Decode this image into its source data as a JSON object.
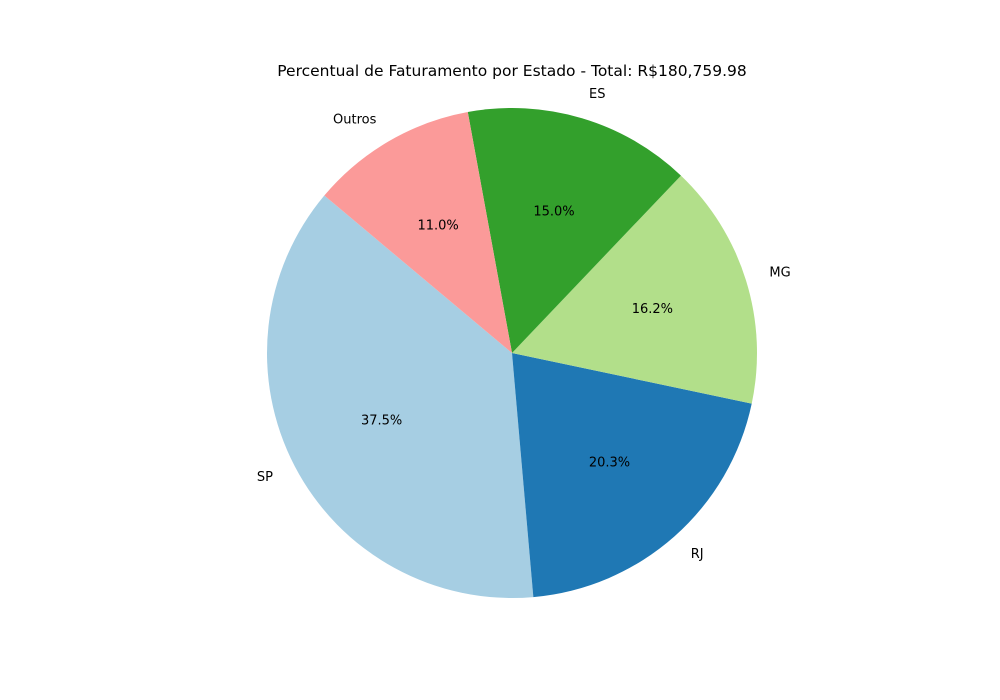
{
  "chart_data": {
    "type": "pie",
    "title": "Percentual de Faturamento por Estado - Total: R$180,759.98",
    "start_angle": 140,
    "direction": "counterclockwise",
    "legend": "none",
    "slices": [
      {
        "label": "SP",
        "value": 37.5,
        "pct_label": "37.5%",
        "color": "#a6cee3"
      },
      {
        "label": "RJ",
        "value": 20.3,
        "pct_label": "20.3%",
        "color": "#1f78b4"
      },
      {
        "label": "MG",
        "value": 16.2,
        "pct_label": "16.2%",
        "color": "#b2df8a"
      },
      {
        "label": "ES",
        "value": 15.0,
        "pct_label": "15.0%",
        "color": "#33a02c"
      },
      {
        "label": "Outros",
        "value": 11.0,
        "pct_label": "11.0%",
        "color": "#fb9a99"
      }
    ]
  }
}
